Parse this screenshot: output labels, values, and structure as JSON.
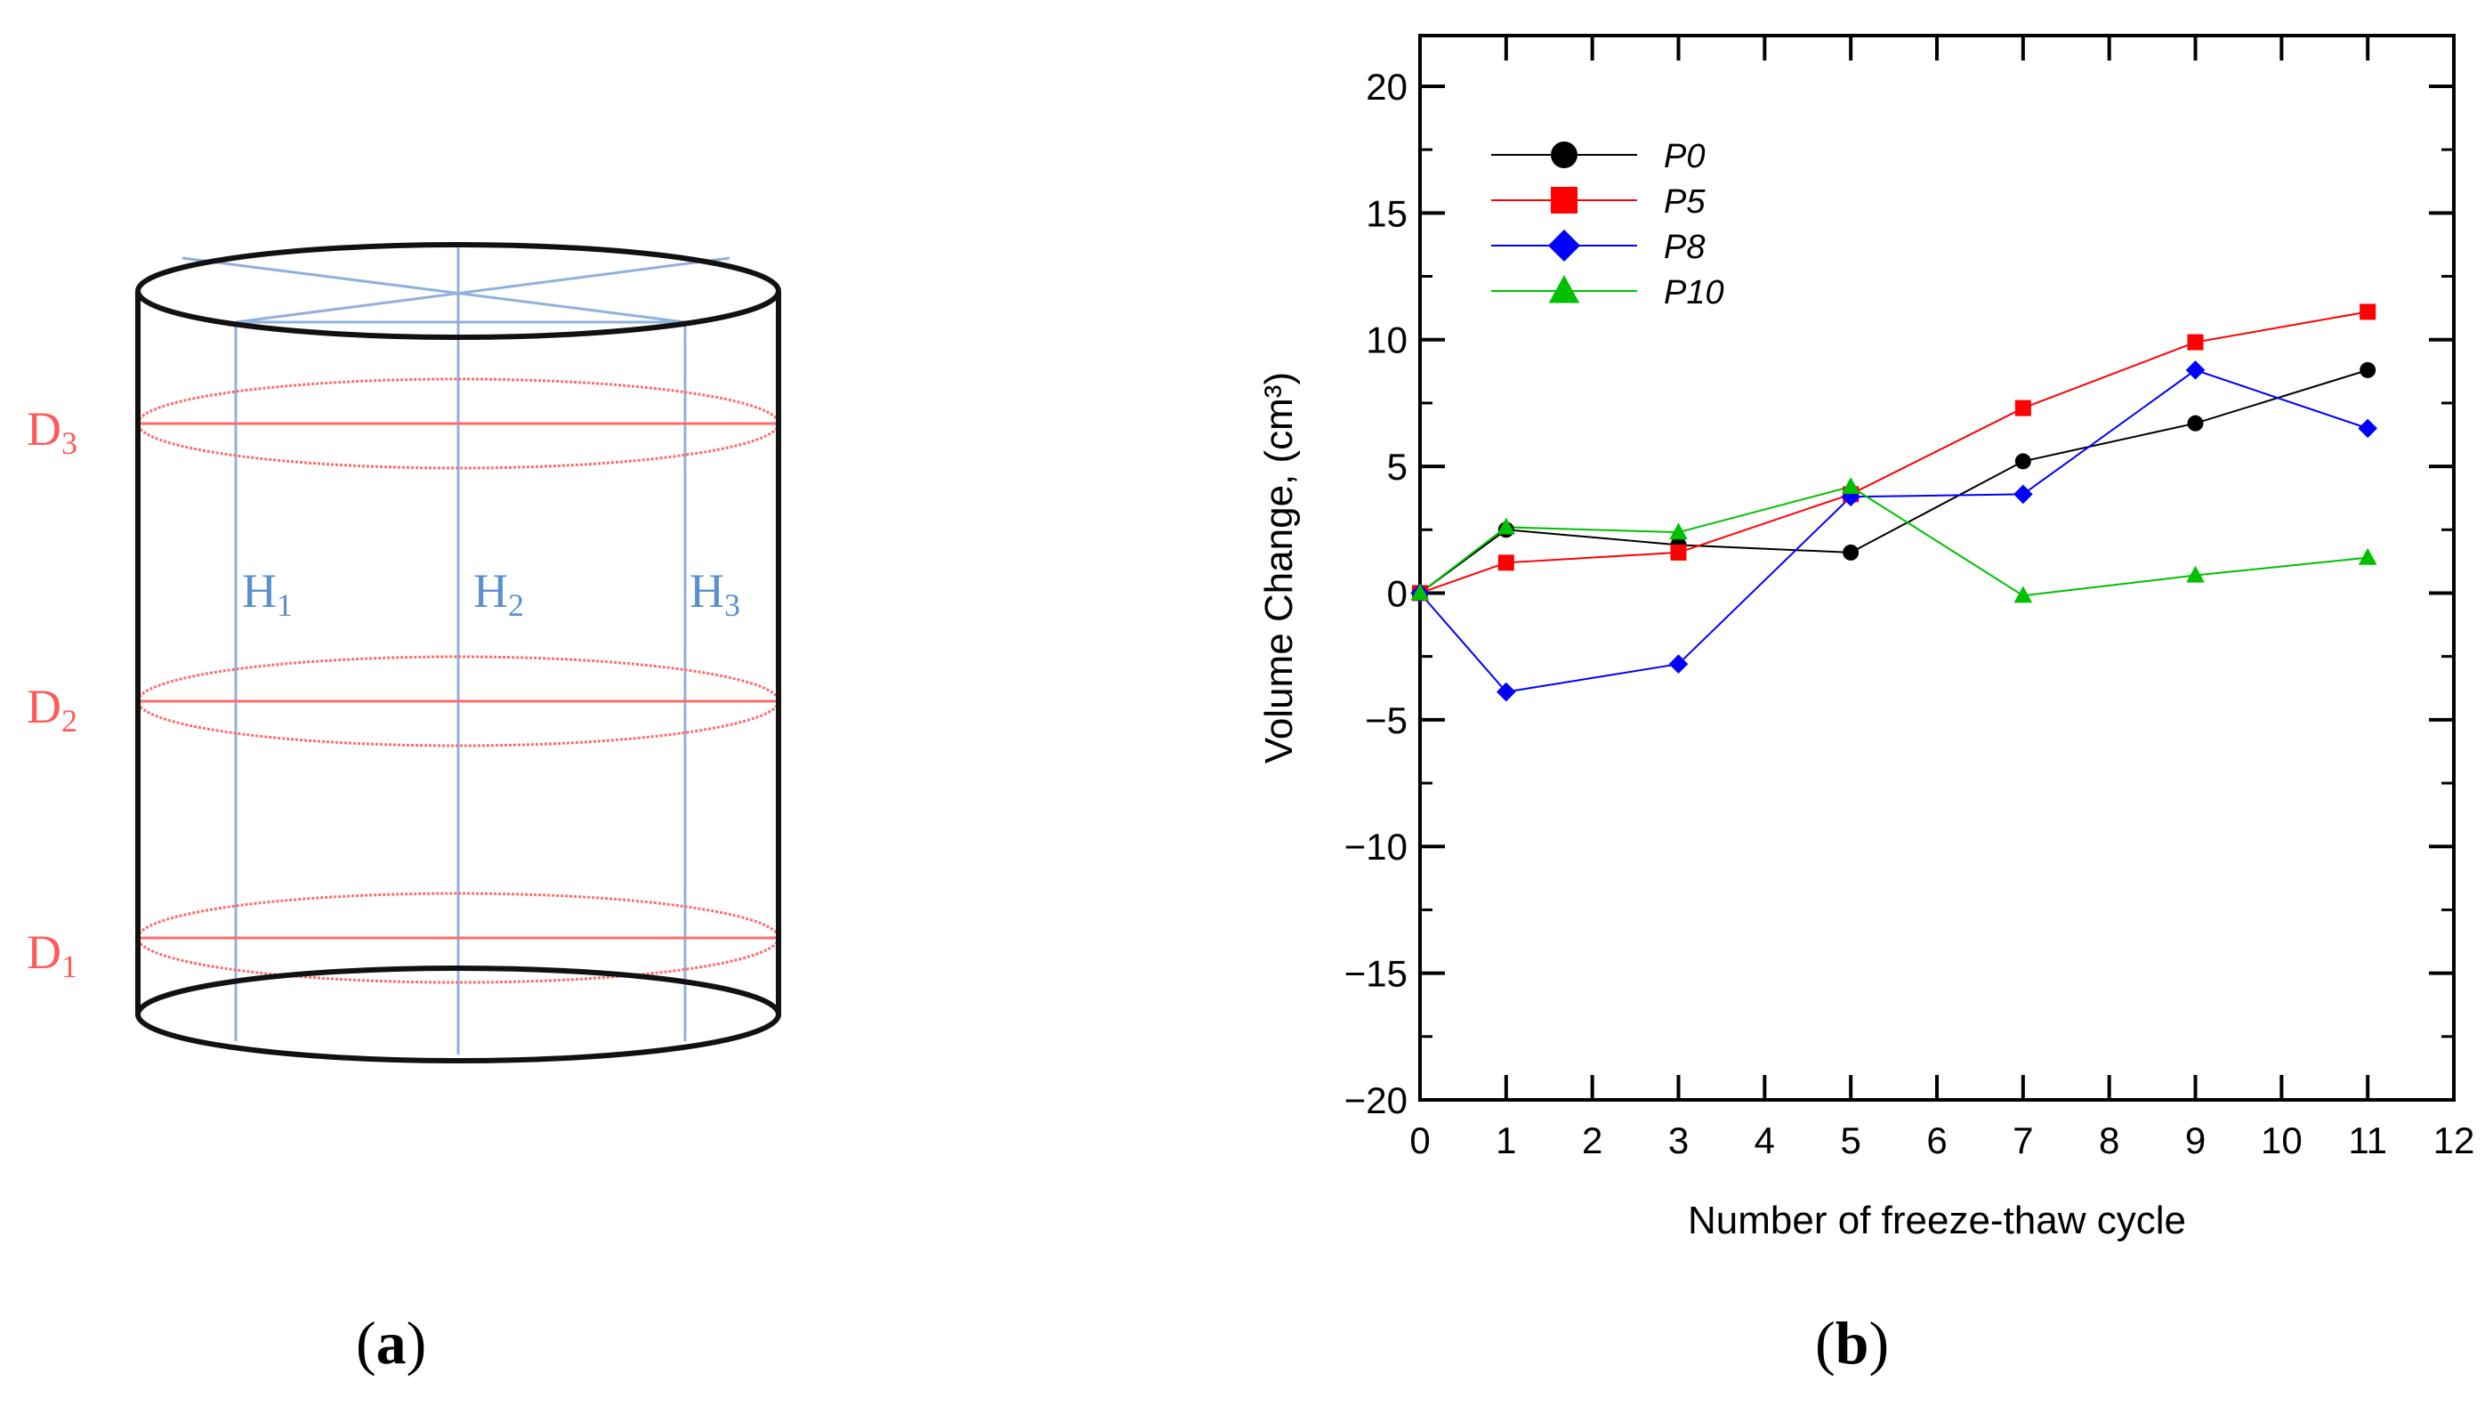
{
  "panel_a": {
    "label_open": "(",
    "label_letter": "a",
    "label_close": ")",
    "diameter_labels": [
      {
        "main": "D",
        "sub": "3"
      },
      {
        "main": "D",
        "sub": "2"
      },
      {
        "main": "D",
        "sub": "1"
      }
    ],
    "height_labels": [
      {
        "main": "H",
        "sub": "1"
      },
      {
        "main": "H",
        "sub": "2"
      },
      {
        "main": "H",
        "sub": "3"
      }
    ],
    "colors": {
      "diameter": "#ff5a5a",
      "height": "#5b8fd0",
      "outline": "#111111"
    }
  },
  "panel_b": {
    "label_open": "(",
    "label_letter": "b",
    "label_close": ")"
  },
  "chart_data": {
    "type": "line",
    "title": "",
    "xlabel": "Number of freeze-thaw cycle",
    "ylabel": "Volume Change, (cm³)",
    "xlim": [
      0,
      12
    ],
    "ylim": [
      -20,
      22
    ],
    "xticks": [
      0,
      1,
      2,
      3,
      4,
      5,
      6,
      7,
      8,
      9,
      10,
      11,
      12
    ],
    "yticks": [
      -20,
      -15,
      -10,
      -5,
      0,
      5,
      10,
      15,
      20
    ],
    "ytick_labels": [
      "−20",
      "−15",
      "−10",
      "−5",
      "0",
      "5",
      "10",
      "15",
      "20"
    ],
    "x": [
      0,
      1,
      3,
      5,
      7,
      9,
      11
    ],
    "legend_position": "top-left",
    "series": [
      {
        "name": "P0",
        "color": "#000000",
        "marker": "circle",
        "values": [
          0,
          2.5,
          1.9,
          1.6,
          5.2,
          6.7,
          8.8
        ]
      },
      {
        "name": "P5",
        "color": "#ff0000",
        "marker": "square",
        "values": [
          0,
          1.2,
          1.6,
          3.9,
          7.3,
          9.9,
          11.1
        ]
      },
      {
        "name": "P8",
        "color": "#0000ff",
        "marker": "diamond",
        "values": [
          0,
          -3.9,
          -2.8,
          3.8,
          3.9,
          8.8,
          6.5
        ]
      },
      {
        "name": "P10",
        "color": "#00c000",
        "marker": "triangle",
        "values": [
          0,
          2.6,
          2.4,
          4.2,
          -0.1,
          0.7,
          1.4
        ]
      }
    ]
  }
}
